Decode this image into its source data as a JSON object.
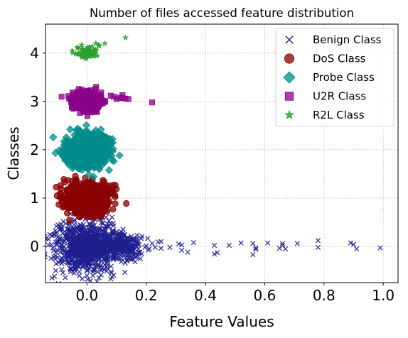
{
  "chart_data": {
    "type": "scatter",
    "title": "Number of files accessed feature distribution",
    "xlabel": "Feature Values",
    "ylabel": "Classes",
    "xlim": [
      -0.14,
      1.05
    ],
    "ylim": [
      -0.75,
      4.6
    ],
    "xticks": [
      "0.0",
      "0.2",
      "0.4",
      "0.6",
      "0.8",
      "1.0"
    ],
    "yticks": [
      "0",
      "1",
      "2",
      "3",
      "4"
    ],
    "grid": true,
    "legend_position": "top-right",
    "series": [
      {
        "name": "Benign Class",
        "class": 0,
        "marker": "x",
        "color": "#1f1f8f",
        "cluster": {
          "x_center": 0.0,
          "x_spread": 0.055,
          "y_spread": 0.28,
          "count": 900
        },
        "tail_cluster": {
          "x_center": 0.12,
          "x_spread": 0.035,
          "y_spread": 0.12,
          "count": 260
        },
        "points": [
          [
            0.2,
            0.01
          ],
          [
            0.21,
            -0.05
          ],
          [
            0.22,
            0.06
          ],
          [
            0.23,
            -0.02
          ],
          [
            0.24,
            0.09
          ],
          [
            0.25,
            0.1
          ],
          [
            0.25,
            -0.04
          ],
          [
            0.28,
            -0.02
          ],
          [
            0.31,
            0.05
          ],
          [
            0.32,
            0.03
          ],
          [
            0.32,
            -0.08
          ],
          [
            0.34,
            -0.12
          ],
          [
            0.36,
            0.08
          ],
          [
            0.43,
            0.02
          ],
          [
            0.43,
            -0.16
          ],
          [
            0.44,
            -0.13
          ],
          [
            0.48,
            0.02
          ],
          [
            0.52,
            0.07
          ],
          [
            0.56,
            0.06
          ],
          [
            0.56,
            -0.17
          ],
          [
            0.57,
            -0.03
          ],
          [
            0.57,
            -0.06
          ],
          [
            0.61,
            0.07
          ],
          [
            0.65,
            -0.04
          ],
          [
            0.66,
            0.06
          ],
          [
            0.66,
            0.02
          ],
          [
            0.67,
            -0.05
          ],
          [
            0.71,
            0.06
          ],
          [
            0.78,
            0.12
          ],
          [
            0.78,
            -0.02
          ],
          [
            0.89,
            0.07
          ],
          [
            0.9,
            0.04
          ],
          [
            0.91,
            -0.05
          ],
          [
            0.99,
            -0.03
          ]
        ]
      },
      {
        "name": "DoS Class",
        "class": 1,
        "marker": "o",
        "color": "#8b0000",
        "cluster": {
          "x_center": 0.0,
          "x_spread": 0.035,
          "y_spread": 0.15,
          "count": 900
        },
        "points": []
      },
      {
        "name": "Probe Class",
        "class": 2,
        "marker": "D",
        "color": "#008b8b",
        "cluster": {
          "x_center": 0.0,
          "x_spread": 0.035,
          "y_spread": 0.16,
          "count": 900
        },
        "points": []
      },
      {
        "name": "U2R Class",
        "class": 3,
        "marker": "s",
        "color": "#8b008b",
        "cluster": {
          "x_center": 0.0,
          "x_spread": 0.025,
          "y_spread": 0.1,
          "count": 320
        },
        "points": [
          [
            0.08,
            3.12
          ],
          [
            0.09,
            3.1
          ],
          [
            0.1,
            3.05
          ],
          [
            0.11,
            3.08
          ],
          [
            0.12,
            3.13
          ],
          [
            0.12,
            3.07
          ],
          [
            0.13,
            3.06
          ],
          [
            0.14,
            3.05
          ],
          [
            0.22,
            2.98
          ]
        ]
      },
      {
        "name": "R2L Class",
        "class": 4,
        "marker": "*",
        "color": "#2ca02c",
        "cluster": {
          "x_center": 0.0,
          "x_spread": 0.02,
          "y_spread": 0.06,
          "count": 60
        },
        "points": [
          [
            -0.05,
            4.05
          ],
          [
            0.03,
            4.2
          ],
          [
            0.04,
            4.17
          ],
          [
            0.06,
            4.2
          ],
          [
            0.13,
            4.32
          ]
        ]
      }
    ]
  }
}
